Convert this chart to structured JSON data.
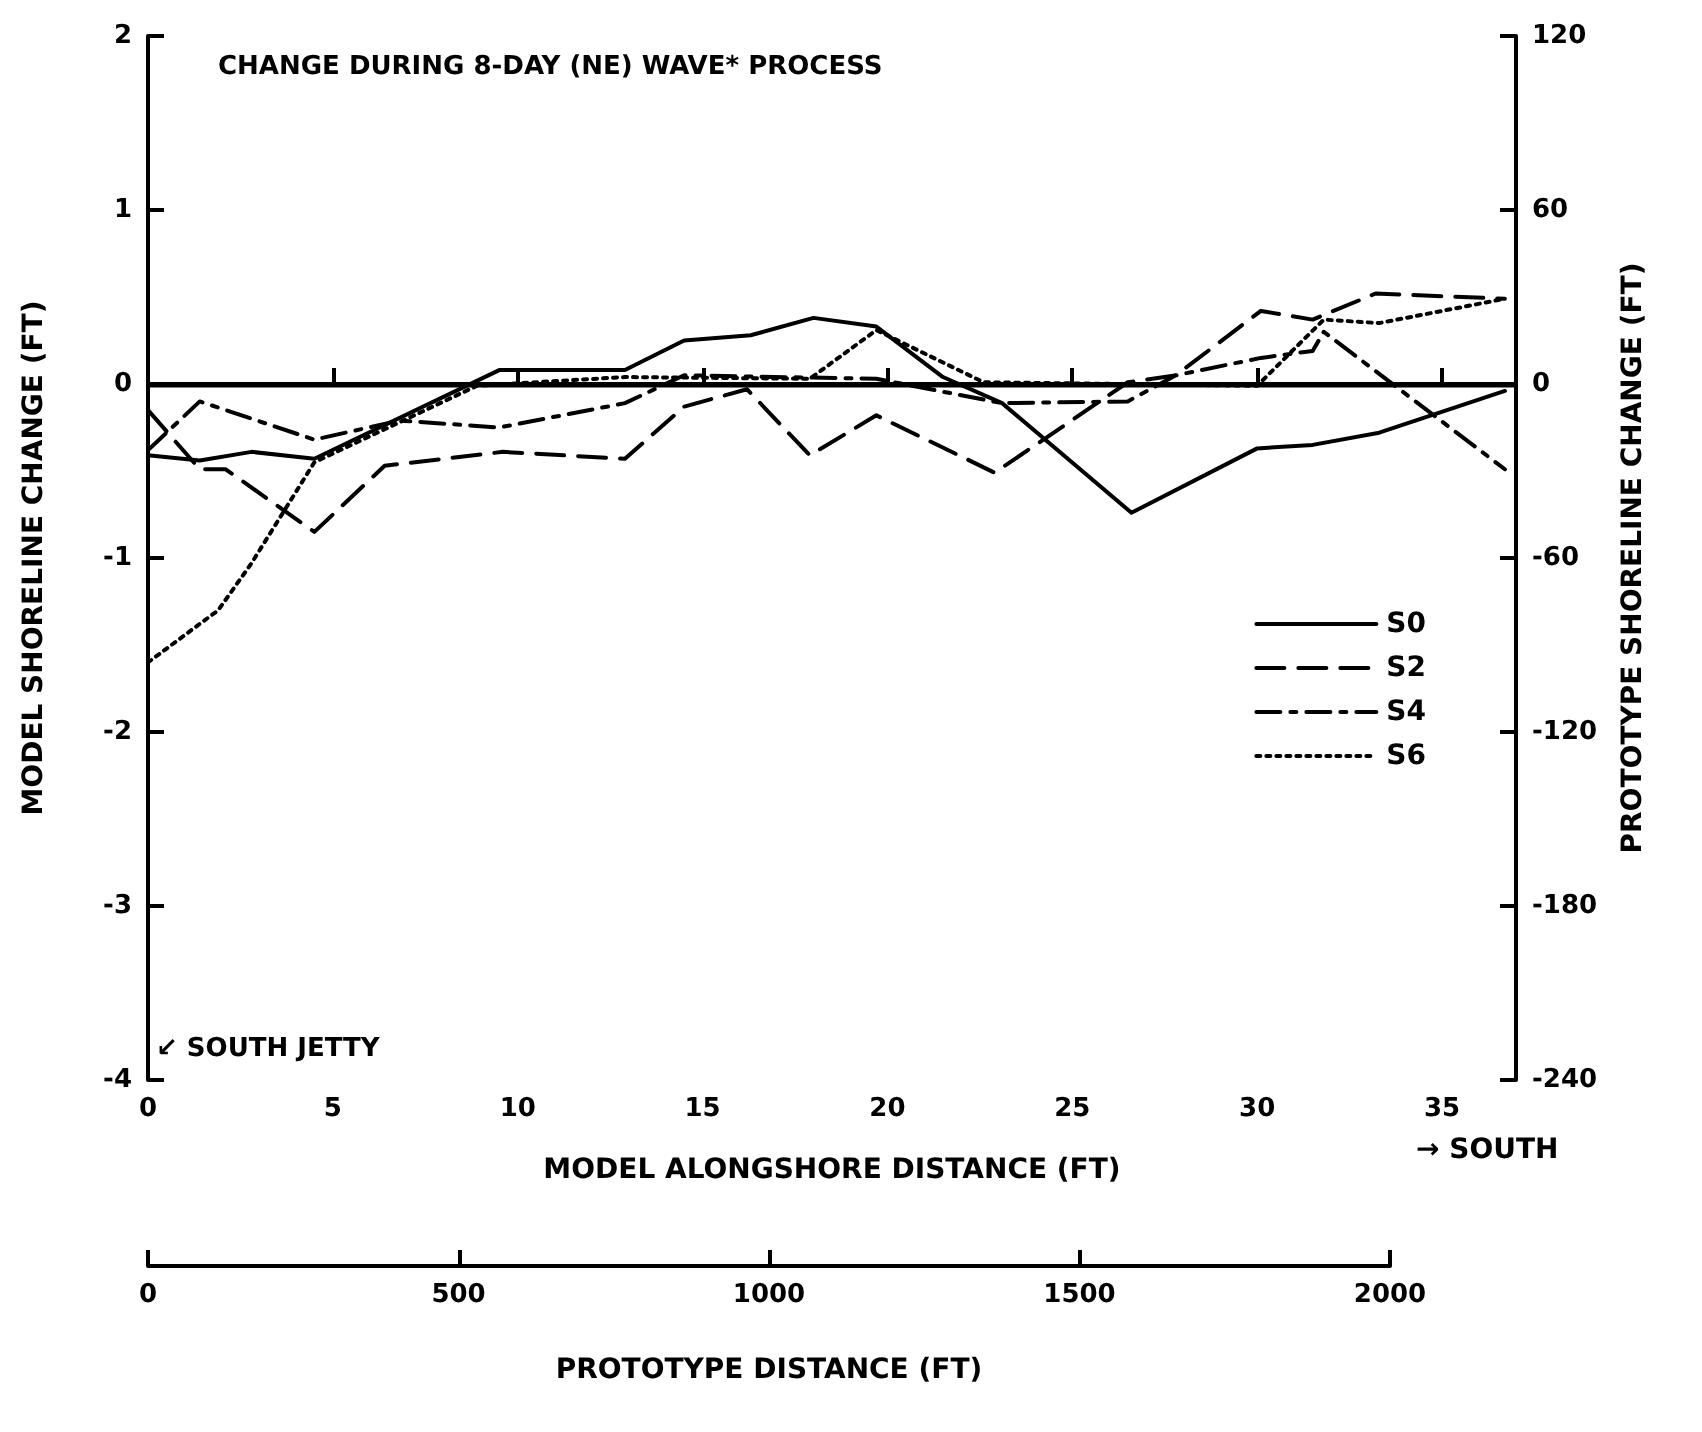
{
  "chart_data": {
    "type": "line",
    "title": "CHANGE DURING 8-DAY (NE) WAVE* PROCESS",
    "xlabel": "MODEL ALONGSHORE DISTANCE (FT)",
    "ylabel": "MODEL SHORELINE CHANGE (FT)",
    "y2label": "PROTOTYPE SHORELINE CHANGE (FT)",
    "x2label": "PROTOTYPE DISTANCE (FT)",
    "annotations": [
      "↙ SOUTH JETTY",
      "→ SOUTH"
    ],
    "xlim": [
      0,
      37
    ],
    "xticks": [
      0,
      5,
      10,
      15,
      20,
      25,
      30,
      35
    ],
    "ylim": [
      -4,
      2
    ],
    "yticks": [
      -4,
      -3,
      -2,
      -1,
      0,
      1,
      2
    ],
    "y2lim": [
      -240,
      120
    ],
    "y2ticks": [
      -240,
      -180,
      -120,
      -60,
      0,
      60,
      120
    ],
    "x2lim": [
      0,
      2000
    ],
    "x2ticks": [
      0,
      500,
      1000,
      1500,
      2000
    ],
    "ref_lines": [
      {
        "axis": "y",
        "value": 0,
        "color": "#000000"
      }
    ],
    "grid": false,
    "legend": "right",
    "marker": "none",
    "series": [
      {
        "name": "S0",
        "color": "#000000",
        "line_style": "solid",
        "x": [
          0,
          1.4,
          2.8,
          4.5,
          9.5,
          12.9,
          14.5,
          16.3,
          18,
          19.7,
          21.5,
          23.1,
          26.6,
          30,
          31.5,
          33.3,
          36.7
        ],
        "values": [
          -0.41,
          -0.44,
          -0.39,
          -0.43,
          0.08,
          0.08,
          0.25,
          0.28,
          0.38,
          0.33,
          0.04,
          -0.11,
          -0.74,
          -0.37,
          -0.35,
          -0.28,
          -0.04
        ]
      },
      {
        "name": "S2",
        "color": "#000000",
        "line_style": "dashed",
        "x": [
          0,
          1.4,
          2.1,
          4.5,
          6.4,
          9.6,
          12.9,
          14.5,
          16.2,
          17.9,
          19.7,
          22.9,
          26.5,
          27.8,
          30.1,
          31.5,
          33.2,
          36.7
        ],
        "values": [
          -0.15,
          -0.49,
          -0.49,
          -0.85,
          -0.47,
          -0.39,
          -0.43,
          -0.13,
          -0.03,
          -0.41,
          -0.18,
          -0.51,
          0.01,
          0.05,
          0.42,
          0.37,
          0.52,
          0.49
        ]
      },
      {
        "name": "S4",
        "color": "#000000",
        "line_style": "dashdot",
        "x": [
          0,
          1.4,
          4.5,
          6.8,
          9.5,
          12.9,
          14.5,
          19.7,
          23.1,
          26.5,
          27.8,
          30.1,
          31.5,
          31.8,
          36.7
        ],
        "values": [
          -0.38,
          -0.1,
          -0.32,
          -0.21,
          -0.25,
          -0.11,
          0.05,
          0.03,
          -0.11,
          -0.1,
          0.05,
          0.15,
          0.19,
          0.3,
          -0.49
        ]
      },
      {
        "name": "S6",
        "color": "#000000",
        "line_style": "dotted",
        "x": [
          0,
          1.9,
          2.8,
          4.5,
          8.9,
          12.9,
          17.9,
          19.7,
          22.6,
          30,
          31.8,
          33.3,
          36.7
        ],
        "values": [
          -1.6,
          -1.3,
          -1.03,
          -0.45,
          -0.01,
          0.04,
          0.03,
          0.31,
          0.01,
          -0.01,
          0.37,
          0.35,
          0.49
        ]
      }
    ]
  }
}
